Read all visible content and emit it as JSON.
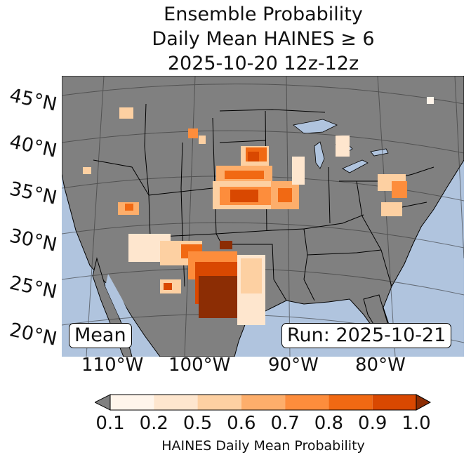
{
  "title": {
    "line1": "Ensemble Probability",
    "line2": "Daily Mean HAINES ≥ 6",
    "line3": "2025-10-20 12z-12z"
  },
  "map": {
    "lat_labels": [
      "45°N",
      "40°N",
      "35°N",
      "30°N",
      "25°N",
      "20°N"
    ],
    "lon_labels": [
      "110°W",
      "100°W",
      "90°W",
      "80°W"
    ],
    "land_color": "#808080",
    "water_color": "#b0c4de",
    "stat_label": "Mean",
    "run_label": "Run: 2025-10-21"
  },
  "colorbar": {
    "ticks": [
      "0.1",
      "0.2",
      "0.5",
      "0.6",
      "0.7",
      "0.8",
      "0.9",
      "1.0"
    ],
    "colors": [
      "#fff5eb",
      "#fee6ce",
      "#fdd0a2",
      "#fdae6b",
      "#fd8d3c",
      "#f16913",
      "#d94801",
      "#8c2d04"
    ],
    "under_color": "#808080",
    "label": "HAINES Daily Mean Probability"
  }
}
